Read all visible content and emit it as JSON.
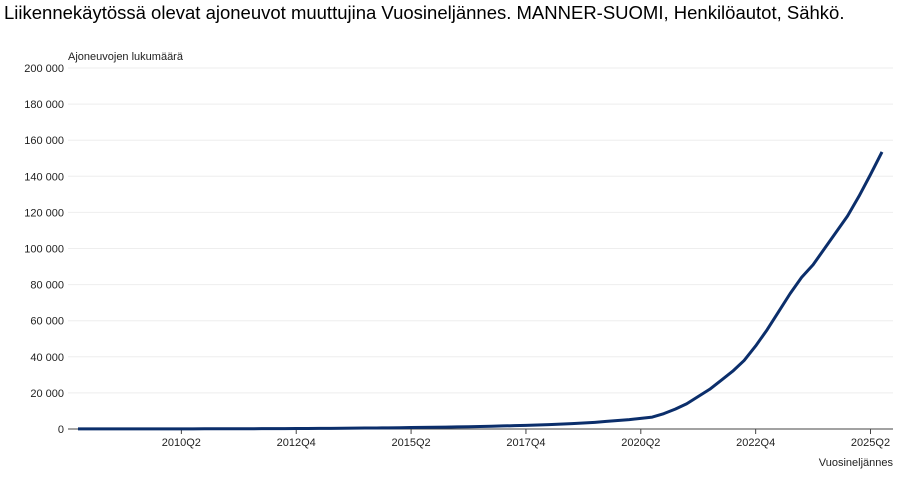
{
  "chart_data": {
    "type": "line",
    "title": "Liikennekäytössä olevat ajoneuvot muuttujina Vuosineljännes. MANNER-SUOMI, Henkilöautot, Sähkö.",
    "y_label": "Ajoneuvojen lukumäärä",
    "x_label": "Vuosineljännes",
    "categories": [
      null,
      null,
      null,
      null,
      null,
      null,
      null,
      null,
      null,
      "2010Q2",
      null,
      null,
      null,
      null,
      null,
      null,
      null,
      null,
      null,
      "2012Q4",
      null,
      null,
      null,
      null,
      null,
      null,
      null,
      null,
      null,
      "2015Q2",
      null,
      null,
      null,
      null,
      null,
      null,
      null,
      null,
      null,
      "2017Q4",
      null,
      null,
      null,
      null,
      null,
      null,
      null,
      null,
      null,
      "2020Q2",
      null,
      null,
      null,
      null,
      null,
      null,
      null,
      null,
      null,
      "2022Q4",
      null,
      null,
      null,
      null,
      null,
      null,
      null,
      null,
      null,
      "2025Q2",
      null
    ],
    "series": [
      {
        "name": "Sähkö",
        "color": "#0b2e6b",
        "values": [
          50,
          55,
          60,
          65,
          70,
          75,
          80,
          85,
          90,
          95,
          100,
          110,
          120,
          130,
          140,
          160,
          180,
          200,
          230,
          260,
          300,
          340,
          380,
          420,
          470,
          520,
          580,
          650,
          720,
          800,
          880,
          960,
          1050,
          1150,
          1250,
          1400,
          1550,
          1700,
          1850,
          2000,
          2200,
          2450,
          2700,
          3000,
          3300,
          3700,
          4200,
          4700,
          5200,
          5900,
          6600,
          8500,
          11000,
          14000,
          18000,
          22000,
          27000,
          32000,
          38000,
          46000,
          55000,
          65000,
          75000,
          84000,
          91000,
          100000,
          109000,
          118000,
          129000,
          141000,
          153500
        ]
      }
    ],
    "ylim": [
      0,
      200000
    ],
    "yticks": [
      {
        "value": 0,
        "label": "0"
      },
      {
        "value": 20000,
        "label": "20 000"
      },
      {
        "value": 40000,
        "label": "40 000"
      },
      {
        "value": 60000,
        "label": "60 000"
      },
      {
        "value": 80000,
        "label": "80 000"
      },
      {
        "value": 100000,
        "label": "100 000"
      },
      {
        "value": 120000,
        "label": "120 000"
      },
      {
        "value": 140000,
        "label": "140 000"
      },
      {
        "value": 160000,
        "label": "160 000"
      },
      {
        "value": 180000,
        "label": "180 000"
      },
      {
        "value": 200000,
        "label": "200 000"
      }
    ],
    "grid": true
  }
}
